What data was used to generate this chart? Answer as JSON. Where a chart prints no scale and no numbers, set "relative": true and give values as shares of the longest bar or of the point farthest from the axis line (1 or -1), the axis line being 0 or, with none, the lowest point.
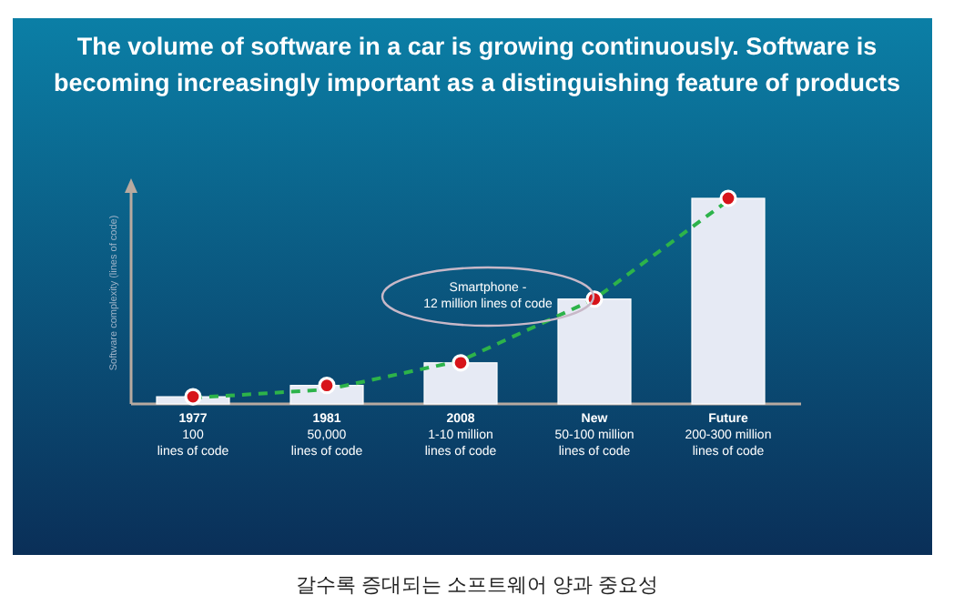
{
  "chart_data": {
    "type": "bar",
    "relative": true,
    "title": "The volume of software in a car is growing continuously. Software is becoming increasingly important as a distinguishing feature of products",
    "ylabel": "Software complexity (lines of code)",
    "categories": [
      "1977\n100\nlines of code",
      "1981\n50,000\nlines of code",
      "2008\n1-10 million\nlines of code",
      "New\n50-100 million\nlines of code",
      "Future\n200-300 million\nlines of code"
    ],
    "series": [
      {
        "color": "#e6eaf4",
        "values": [
          0.035,
          0.09,
          0.2,
          0.51,
          1.0
        ]
      },
      {
        "type": "line",
        "color": "#2db34a",
        "line_style": "dashed",
        "marker": "none",
        "values": [
          0.03,
          0.07,
          0.21,
          0.51,
          0.99
        ]
      },
      {
        "type": "scatter",
        "color": "#d7141a",
        "marker": "circle",
        "values": [
          0.035,
          0.09,
          0.2,
          0.51,
          1.0
        ]
      }
    ],
    "annotations": [
      "Smartphone -\n12 million lines of code",
      "갈수록 증대되는 소프트웨어 양과 중요성"
    ]
  }
}
